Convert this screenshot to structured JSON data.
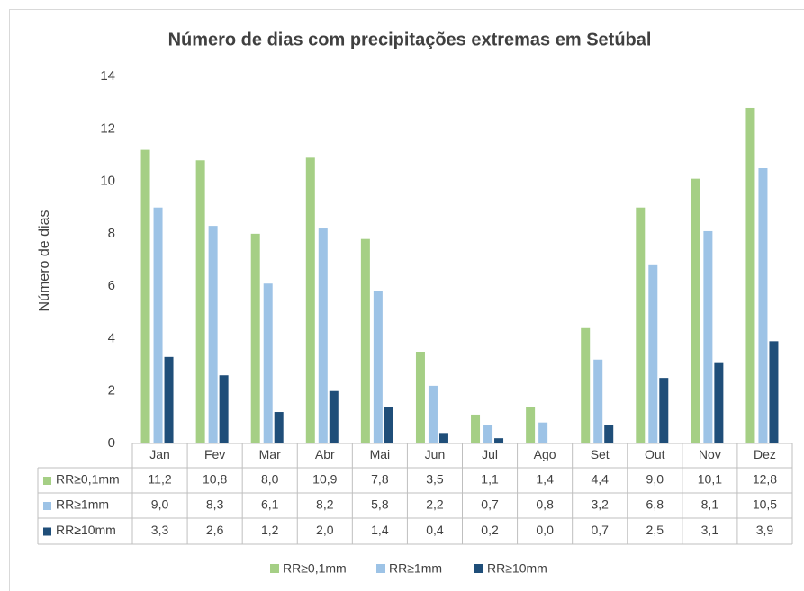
{
  "chart_data": {
    "type": "bar",
    "title": "Número de dias com precipitações extremas em Setúbal",
    "y_label": "Número de dias",
    "categories": [
      "Jan",
      "Fev",
      "Mar",
      "Abr",
      "Mai",
      "Jun",
      "Jul",
      "Ago",
      "Set",
      "Out",
      "Nov",
      "Dez"
    ],
    "series": [
      {
        "name": "RR≥0,1mm",
        "color": "#a5cf85",
        "values": [
          11.2,
          10.8,
          8.0,
          10.9,
          7.8,
          3.5,
          1.1,
          1.4,
          4.4,
          9.0,
          10.1,
          12.8
        ],
        "value_labels": [
          "11,2",
          "10,8",
          "8,0",
          "10,9",
          "7,8",
          "3,5",
          "1,1",
          "1,4",
          "4,4",
          "9,0",
          "10,1",
          "12,8"
        ]
      },
      {
        "name": "RR≥1mm",
        "color": "#9dc3e6",
        "values": [
          9.0,
          8.3,
          6.1,
          8.2,
          5.8,
          2.2,
          0.7,
          0.8,
          3.2,
          6.8,
          8.1,
          10.5
        ],
        "value_labels": [
          "9,0",
          "8,3",
          "6,1",
          "8,2",
          "5,8",
          "2,2",
          "0,7",
          "0,8",
          "3,2",
          "6,8",
          "8,1",
          "10,5"
        ]
      },
      {
        "name": "RR≥10mm",
        "color": "#1f4e79",
        "values": [
          3.3,
          2.6,
          1.2,
          2.0,
          1.4,
          0.4,
          0.2,
          0.0,
          0.7,
          2.5,
          3.1,
          3.9
        ],
        "value_labels": [
          "3,3",
          "2,6",
          "1,2",
          "2,0",
          "1,4",
          "0,4",
          "0,2",
          "0,0",
          "0,7",
          "2,5",
          "3,1",
          "3,9"
        ]
      }
    ],
    "ylim": [
      0,
      14
    ],
    "yticks": [
      0,
      2,
      4,
      6,
      8,
      10,
      12,
      14
    ],
    "grid": false,
    "legend": "bottom"
  }
}
